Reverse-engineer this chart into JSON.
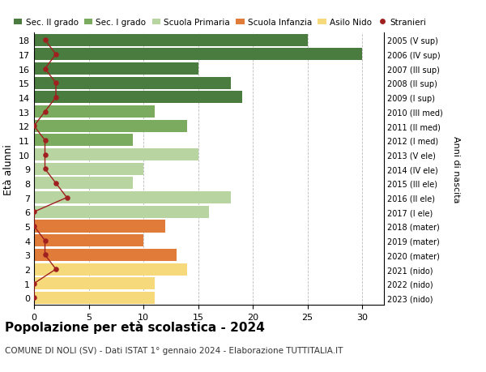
{
  "ages": [
    18,
    17,
    16,
    15,
    14,
    13,
    12,
    11,
    10,
    9,
    8,
    7,
    6,
    5,
    4,
    3,
    2,
    1,
    0
  ],
  "bar_values": [
    25,
    30,
    15,
    18,
    19,
    11,
    14,
    9,
    15,
    10,
    9,
    18,
    16,
    12,
    10,
    13,
    14,
    11,
    11
  ],
  "bar_colors": [
    "#4a7c3f",
    "#4a7c3f",
    "#4a7c3f",
    "#4a7c3f",
    "#4a7c3f",
    "#7aab5e",
    "#7aab5e",
    "#7aab5e",
    "#b8d4a0",
    "#b8d4a0",
    "#b8d4a0",
    "#b8d4a0",
    "#b8d4a0",
    "#e07b39",
    "#e07b39",
    "#e07b39",
    "#f5d97a",
    "#f5d97a",
    "#f5d97a"
  ],
  "stranieri_values": [
    1,
    2,
    1,
    2,
    2,
    1,
    0,
    1,
    1,
    1,
    2,
    3,
    0,
    0,
    1,
    1,
    2,
    0,
    0
  ],
  "right_labels": [
    "2005 (V sup)",
    "2006 (IV sup)",
    "2007 (III sup)",
    "2008 (II sup)",
    "2009 (I sup)",
    "2010 (III med)",
    "2011 (II med)",
    "2012 (I med)",
    "2013 (V ele)",
    "2014 (IV ele)",
    "2015 (III ele)",
    "2016 (II ele)",
    "2017 (I ele)",
    "2018 (mater)",
    "2019 (mater)",
    "2020 (mater)",
    "2021 (nido)",
    "2022 (nido)",
    "2023 (nido)"
  ],
  "legend_labels": [
    "Sec. II grado",
    "Sec. I grado",
    "Scuola Primaria",
    "Scuola Infanzia",
    "Asilo Nido",
    "Stranieri"
  ],
  "legend_colors": [
    "#4a7c3f",
    "#7aab5e",
    "#b8d4a0",
    "#e07b39",
    "#f5d97a",
    "#a02020"
  ],
  "ylabel": "Età alunni",
  "right_ylabel": "Anni di nascita",
  "title": "Popolazione per età scolastica - 2024",
  "subtitle": "COMUNE DI NOLI (SV) - Dati ISTAT 1° gennaio 2024 - Elaborazione TUTTITALIA.IT",
  "xlim": [
    0,
    32
  ],
  "xticks": [
    0,
    5,
    10,
    15,
    20,
    25,
    30
  ],
  "ylim": [
    -0.5,
    18.5
  ],
  "background_color": "#ffffff",
  "grid_color": "#bbbbbb",
  "stranieri_color": "#a02020"
}
